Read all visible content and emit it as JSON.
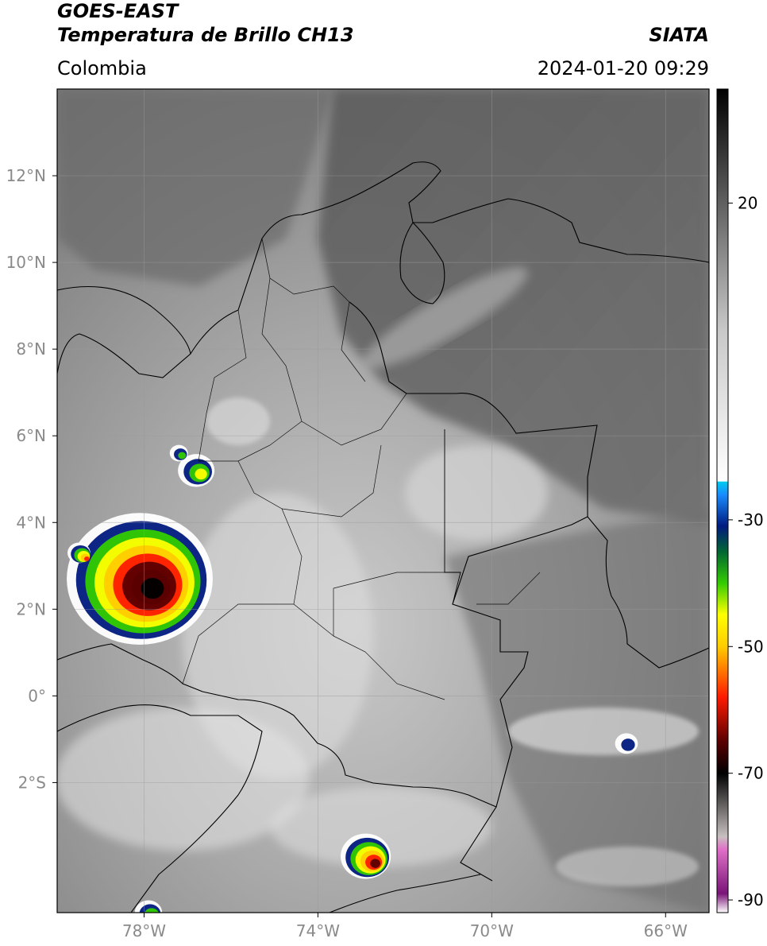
{
  "header": {
    "title_line1": "GOES-EAST",
    "title_line2": "Temperatura de Brillo CH13",
    "region": "Colombia",
    "organization": "SIATA",
    "timestamp": "2024-01-20 09:29"
  },
  "map": {
    "lon_range": [
      -80,
      -65
    ],
    "lat_range": [
      -5,
      14
    ],
    "lon_ticks": [
      {
        "value": -78,
        "label": "78°W"
      },
      {
        "value": -74,
        "label": "74°W"
      },
      {
        "value": -70,
        "label": "70°W"
      },
      {
        "value": -66,
        "label": "66°W"
      }
    ],
    "lat_ticks": [
      {
        "value": 12,
        "label": "12°N"
      },
      {
        "value": 10,
        "label": "10°N"
      },
      {
        "value": 8,
        "label": "8°N"
      },
      {
        "value": 6,
        "label": "6°N"
      },
      {
        "value": 4,
        "label": "4°N"
      },
      {
        "value": 2,
        "label": "2°N"
      },
      {
        "value": 0,
        "label": "0°"
      },
      {
        "value": -2,
        "label": "2°S"
      }
    ],
    "gridlines": true
  },
  "colorbar": {
    "range": [
      -92,
      38
    ],
    "ticks": [
      {
        "value": 20,
        "label": "20"
      },
      {
        "value": -30,
        "label": "-30"
      },
      {
        "value": -50,
        "label": "-50"
      },
      {
        "value": -70,
        "label": "-70"
      },
      {
        "value": -90,
        "label": "-90"
      }
    ],
    "stops": [
      {
        "value": -92,
        "color": "#ffffff"
      },
      {
        "value": -89,
        "color": "#7a1478"
      },
      {
        "value": -82,
        "color": "#e070c8"
      },
      {
        "value": -80,
        "color": "#c8c0c0"
      },
      {
        "value": -70,
        "color": "#000000"
      },
      {
        "value": -65,
        "color": "#5a0000"
      },
      {
        "value": -58,
        "color": "#ff1a00"
      },
      {
        "value": -50,
        "color": "#ffcc00"
      },
      {
        "value": -45,
        "color": "#ffff00"
      },
      {
        "value": -40,
        "color": "#33cc00"
      },
      {
        "value": -35,
        "color": "#006633"
      },
      {
        "value": -31,
        "color": "#001a80"
      },
      {
        "value": -26,
        "color": "#1a8cff"
      },
      {
        "value": -24,
        "color": "#00ccee"
      },
      {
        "value": -23.9,
        "color": "#ffffff"
      },
      {
        "value": 0,
        "color": "#c8c8c8"
      },
      {
        "value": 20,
        "color": "#606060"
      },
      {
        "value": 38,
        "color": "#000000"
      }
    ]
  },
  "storm_cells": [
    {
      "lon": -78.1,
      "lat": 2.7,
      "min_temp": -72,
      "radius_deg": 1.6
    },
    {
      "lon": -72.9,
      "lat": -3.7,
      "min_temp": -62,
      "radius_deg": 0.55
    },
    {
      "lon": -79.5,
      "lat": 3.3,
      "min_temp": -58,
      "radius_deg": 0.25
    },
    {
      "lon": -76.8,
      "lat": 5.2,
      "min_temp": -45,
      "radius_deg": 0.4
    },
    {
      "lon": -77.9,
      "lat": -5.0,
      "min_temp": -48,
      "radius_deg": 0.3
    },
    {
      "lon": -77.2,
      "lat": 5.6,
      "min_temp": -44,
      "radius_deg": 0.2
    },
    {
      "lon": -66.9,
      "lat": -1.1,
      "min_temp": -36,
      "radius_deg": 0.25
    }
  ]
}
